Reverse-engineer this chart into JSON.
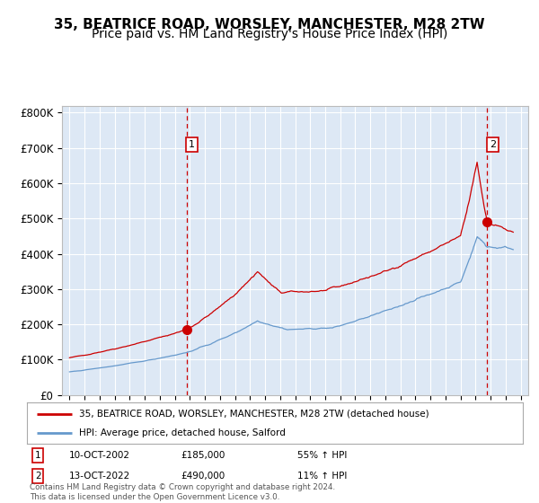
{
  "title": "35, BEATRICE ROAD, WORSLEY, MANCHESTER, M28 2TW",
  "subtitle": "Price paid vs. HM Land Registry's House Price Index (HPI)",
  "legend_line1": "35, BEATRICE ROAD, WORSLEY, MANCHESTER, M28 2TW (detached house)",
  "legend_line2": "HPI: Average price, detached house, Salford",
  "annotation1_date": "10-OCT-2002",
  "annotation1_price": "£185,000",
  "annotation1_hpi": "55% ↑ HPI",
  "annotation1_year": 2002.78,
  "annotation1_value": 185000,
  "annotation2_date": "13-OCT-2022",
  "annotation2_price": "£490,000",
  "annotation2_hpi": "11% ↑ HPI",
  "annotation2_year": 2022.78,
  "annotation2_value": 490000,
  "red_color": "#cc0000",
  "blue_color": "#6699cc",
  "bg_color": "#dde8f5",
  "grid_color": "#ffffff",
  "title_fontsize": 11,
  "subtitle_fontsize": 10,
  "ylabel_ticks": [
    "£0",
    "£100K",
    "£200K",
    "£300K",
    "£400K",
    "£500K",
    "£600K",
    "£700K",
    "£800K"
  ],
  "ylabel_values": [
    0,
    100000,
    200000,
    300000,
    400000,
    500000,
    600000,
    700000,
    800000
  ],
  "xlim": [
    1994.5,
    2025.5
  ],
  "ylim": [
    0,
    820000
  ],
  "footer_text": "Contains HM Land Registry data © Crown copyright and database right 2024.\nThis data is licensed under the Open Government Licence v3.0."
}
